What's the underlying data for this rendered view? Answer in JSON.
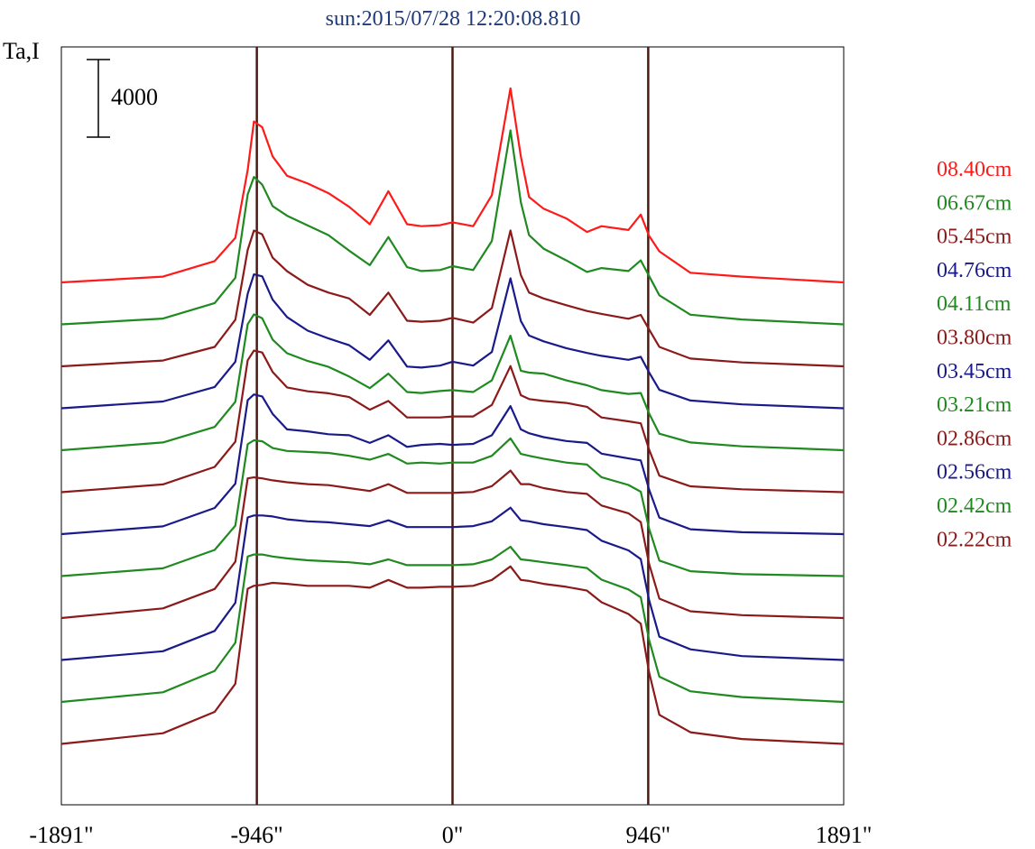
{
  "chart_data": {
    "type": "line",
    "title": "sun:2015/07/28 12:20:08.810",
    "ylabel": "Ta,I",
    "scale_bar_label": "4000",
    "scale_bar_value": 4000,
    "xlim": [
      -1891,
      1891
    ],
    "x_ticks": [
      {
        "value": -1891,
        "label": "-1891\""
      },
      {
        "value": -946,
        "label": "-946\""
      },
      {
        "value": 0,
        "label": "0\""
      },
      {
        "value": 946,
        "label": "946\""
      },
      {
        "value": 1891,
        "label": "1891\""
      }
    ],
    "vertical_lines": [
      -946,
      0,
      946
    ],
    "vertical_line_color": "#4a1a14",
    "legend_placement": "right",
    "grid": false,
    "x": [
      -1891,
      -1400,
      -1150,
      -1050,
      -990,
      -960,
      -920,
      -870,
      -800,
      -700,
      -600,
      -500,
      -400,
      -310,
      -220,
      -150,
      -60,
      0,
      100,
      190,
      280,
      330,
      370,
      440,
      550,
      650,
      720,
      850,
      910,
      950,
      1000,
      1150,
      1400,
      1891
    ],
    "series": [
      {
        "name": "08.40cm",
        "color": "#ff1a1a",
        "values": [
          0,
          300,
          1100,
          2300,
          5800,
          8300,
          8000,
          6500,
          5500,
          5100,
          4600,
          3900,
          3000,
          4700,
          3000,
          2900,
          2950,
          3100,
          2900,
          4500,
          10000,
          6500,
          4400,
          3800,
          3300,
          2600,
          2900,
          2700,
          3500,
          2400,
          1600,
          500,
          300,
          0
        ]
      },
      {
        "name": "06.67cm",
        "color": "#1f8a1f",
        "values": [
          0,
          300,
          1100,
          2400,
          6700,
          7600,
          7200,
          6100,
          5600,
          5100,
          4600,
          3800,
          3050,
          4500,
          2950,
          2750,
          2800,
          3000,
          2800,
          4300,
          10000,
          6300,
          4600,
          3900,
          3300,
          2700,
          2900,
          2750,
          3300,
          2500,
          1500,
          500,
          250,
          0
        ]
      },
      {
        "name": "05.45cm",
        "color": "#8b1a1a",
        "values": [
          0,
          300,
          1000,
          2400,
          6000,
          7000,
          6800,
          5600,
          4900,
          4200,
          3800,
          3500,
          2650,
          3800,
          2350,
          2300,
          2350,
          2500,
          2250,
          3000,
          7000,
          4700,
          3800,
          3500,
          3150,
          2850,
          2700,
          2450,
          2650,
          1900,
          1000,
          400,
          200,
          0
        ]
      },
      {
        "name": "04.76cm",
        "color": "#1a1a8a",
        "values": [
          0,
          350,
          1100,
          2400,
          5900,
          6900,
          6800,
          5600,
          4700,
          4000,
          3600,
          3250,
          2500,
          3500,
          2150,
          2100,
          2200,
          2400,
          2200,
          2900,
          6700,
          4500,
          3750,
          3450,
          3100,
          2850,
          2700,
          2500,
          2650,
          1850,
          950,
          400,
          200,
          0
        ]
      },
      {
        "name": "04.11cm",
        "color": "#1f8a1f",
        "values": [
          0,
          400,
          1200,
          2500,
          6500,
          7000,
          6800,
          5700,
          5000,
          4600,
          4300,
          3800,
          3200,
          3950,
          3000,
          2950,
          3050,
          3100,
          3000,
          3600,
          5900,
          4100,
          4000,
          3950,
          3600,
          3350,
          3100,
          2900,
          2950,
          1900,
          850,
          400,
          200,
          0
        ]
      },
      {
        "name": "03.80cm",
        "color": "#8b1a1a",
        "values": [
          0,
          400,
          1300,
          2600,
          6800,
          7300,
          7200,
          6200,
          5400,
          5200,
          5100,
          4900,
          4250,
          4700,
          3850,
          3850,
          3850,
          3900,
          3900,
          4500,
          6500,
          5000,
          4800,
          4700,
          4600,
          4400,
          3850,
          3650,
          3550,
          2200,
          850,
          300,
          150,
          0
        ]
      },
      {
        "name": "03.45cm",
        "color": "#1a1a8a",
        "values": [
          0,
          400,
          1350,
          2600,
          6900,
          7200,
          7100,
          6200,
          5400,
          5300,
          5150,
          5100,
          4700,
          5100,
          4500,
          4600,
          4650,
          4600,
          4650,
          5100,
          6600,
          5400,
          5200,
          5000,
          4800,
          4700,
          4150,
          3900,
          3800,
          2300,
          850,
          250,
          100,
          0
        ]
      },
      {
        "name": "03.21cm",
        "color": "#1f8a1f",
        "values": [
          0,
          400,
          1350,
          2600,
          6800,
          7000,
          6950,
          6600,
          6450,
          6400,
          6350,
          6200,
          6000,
          6300,
          5800,
          5850,
          5800,
          5850,
          5850,
          6200,
          7100,
          6300,
          6200,
          6050,
          5850,
          5750,
          5100,
          4700,
          4350,
          2450,
          800,
          250,
          100,
          0
        ]
      },
      {
        "name": "02.86cm",
        "color": "#8b1a1a",
        "values": [
          0,
          500,
          1500,
          2900,
          7200,
          7250,
          7200,
          7100,
          7000,
          6900,
          6850,
          6700,
          6550,
          6900,
          6450,
          6450,
          6450,
          6450,
          6500,
          6800,
          7600,
          6900,
          6900,
          6700,
          6500,
          6400,
          5800,
          5400,
          4950,
          2800,
          1000,
          350,
          150,
          0
        ]
      },
      {
        "name": "02.56cm",
        "color": "#1a1a8a",
        "values": [
          0,
          450,
          1500,
          2950,
          7350,
          7450,
          7450,
          7400,
          7250,
          7150,
          7100,
          7000,
          6900,
          7200,
          6850,
          6850,
          6850,
          6850,
          6900,
          7150,
          7850,
          7200,
          7150,
          7000,
          6850,
          6700,
          6150,
          5650,
          5200,
          3100,
          1200,
          550,
          200,
          0
        ]
      },
      {
        "name": "02.42cm",
        "color": "#1f8a1f",
        "values": [
          0,
          500,
          1600,
          3050,
          7500,
          7600,
          7600,
          7500,
          7400,
          7300,
          7250,
          7200,
          7100,
          7350,
          7050,
          7050,
          7050,
          7050,
          7100,
          7350,
          8000,
          7350,
          7300,
          7200,
          7050,
          6900,
          6300,
          5800,
          5400,
          3200,
          1300,
          550,
          250,
          0
        ]
      },
      {
        "name": "02.22cm",
        "color": "#8b1a1a",
        "values": [
          0,
          550,
          1650,
          3100,
          8000,
          8150,
          8200,
          8300,
          8250,
          8150,
          8150,
          8150,
          8050,
          8450,
          8050,
          8050,
          8100,
          8100,
          8150,
          8450,
          9150,
          8450,
          8400,
          8250,
          8100,
          7900,
          7300,
          6700,
          6200,
          3700,
          1500,
          600,
          250,
          0
        ]
      }
    ]
  }
}
